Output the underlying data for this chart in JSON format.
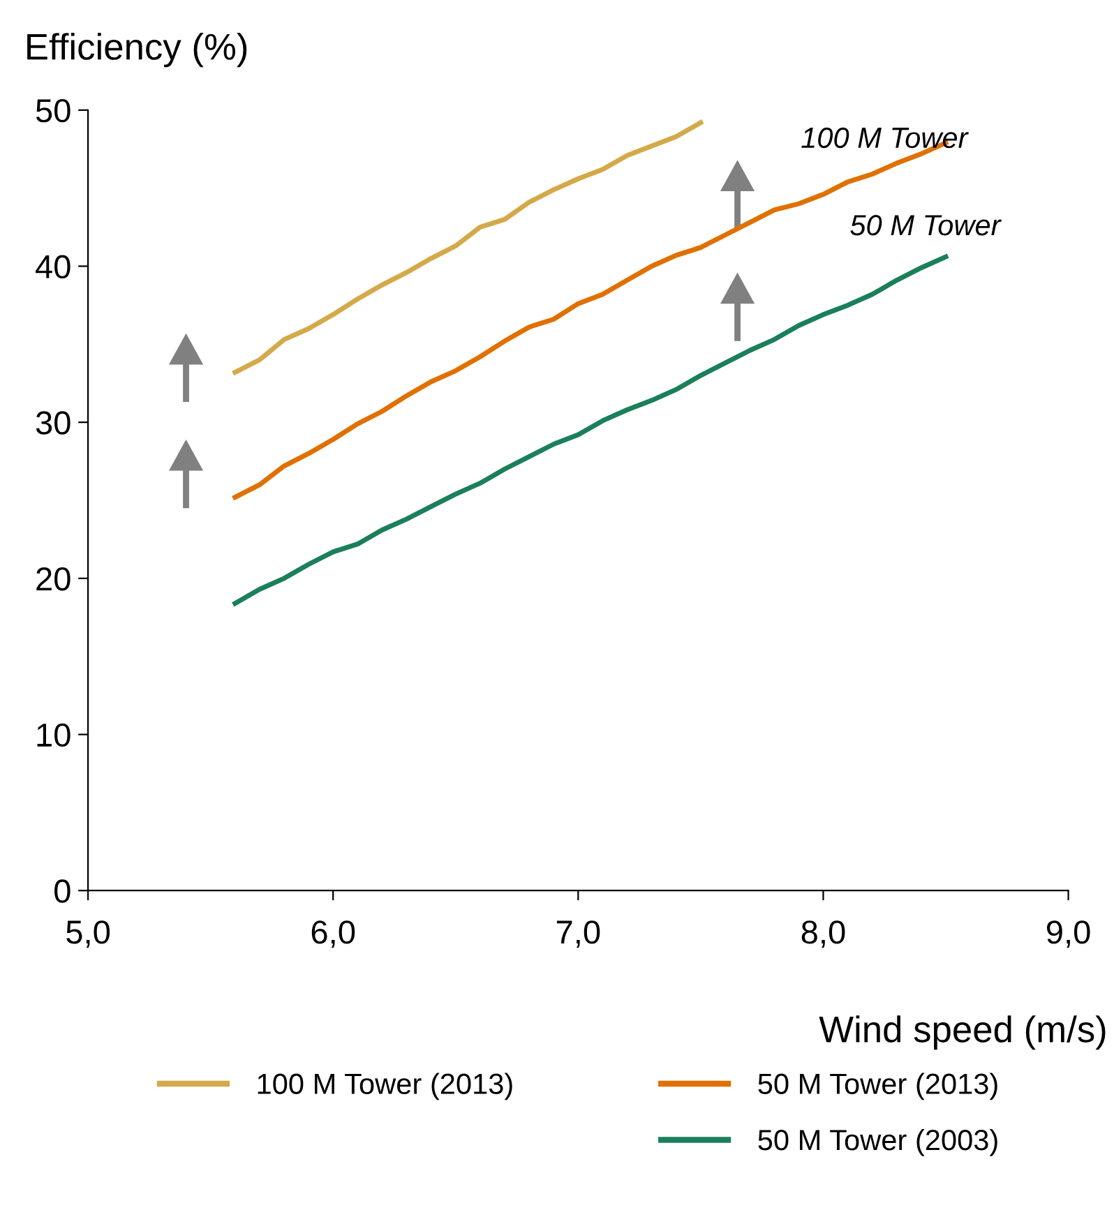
{
  "chart_data": {
    "type": "line",
    "xlabel": "Wind speed (m/s)",
    "ylabel": "Efficiency (%)",
    "xlim": [
      5,
      9
    ],
    "xticks": [
      {
        "value": 5,
        "label": "5,0"
      },
      {
        "value": 6,
        "label": "6,0"
      },
      {
        "value": 7,
        "label": "7,0"
      },
      {
        "value": 8,
        "label": "8,0"
      },
      {
        "value": 9,
        "label": "9,0"
      }
    ],
    "ylim": [
      0,
      50
    ],
    "yticks": [
      0,
      10,
      20,
      30,
      40,
      50
    ],
    "grid": false,
    "legend": "bottom",
    "marker": "none",
    "line_style": "solid",
    "series": [
      {
        "name": "100 M Tower (2013)",
        "color": "#d4a94a",
        "x": [
          5.6,
          5.7,
          5.8,
          5.9,
          6.0,
          6.1,
          6.2,
          6.3,
          6.4,
          6.5,
          6.6,
          6.7,
          6.8,
          6.9,
          7.0,
          7.1,
          7.2,
          7.3,
          7.4,
          7.5
        ],
        "values": [
          33.2,
          34.0,
          35.3,
          36.0,
          36.9,
          37.9,
          38.8,
          39.6,
          40.5,
          41.3,
          42.5,
          43.0,
          44.1,
          44.9,
          45.6,
          46.2,
          47.1,
          47.7,
          48.3,
          49.2
        ]
      },
      {
        "name": "50 M Tower (2013)",
        "color": "#e07000",
        "x": [
          5.6,
          5.7,
          5.8,
          5.9,
          6.0,
          6.1,
          6.2,
          6.3,
          6.4,
          6.5,
          6.6,
          6.7,
          6.8,
          6.9,
          7.0,
          7.1,
          7.2,
          7.3,
          7.4,
          7.5,
          7.6,
          7.7,
          7.8,
          7.9,
          8.0,
          8.1,
          8.2,
          8.3,
          8.4,
          8.5
        ],
        "values": [
          25.2,
          26.0,
          27.2,
          28.0,
          28.9,
          29.9,
          30.7,
          31.7,
          32.6,
          33.3,
          34.2,
          35.2,
          36.1,
          36.6,
          37.6,
          38.2,
          39.1,
          40.0,
          40.7,
          41.2,
          42.0,
          42.8,
          43.6,
          44.0,
          44.6,
          45.4,
          45.9,
          46.6,
          47.2,
          47.9
        ]
      },
      {
        "name": "50 M Tower (2003)",
        "color": "#1a7f5a",
        "x": [
          5.6,
          5.7,
          5.8,
          5.9,
          6.0,
          6.1,
          6.2,
          6.3,
          6.4,
          6.5,
          6.6,
          6.7,
          6.8,
          6.9,
          7.0,
          7.1,
          7.2,
          7.3,
          7.4,
          7.5,
          7.6,
          7.7,
          7.8,
          7.9,
          8.0,
          8.1,
          8.2,
          8.3,
          8.4,
          8.5
        ],
        "values": [
          18.4,
          19.3,
          20.0,
          20.9,
          21.7,
          22.2,
          23.1,
          23.8,
          24.6,
          25.4,
          26.1,
          27.0,
          27.8,
          28.6,
          29.2,
          30.1,
          30.8,
          31.4,
          32.1,
          33.0,
          33.8,
          34.6,
          35.3,
          36.2,
          36.9,
          37.5,
          38.2,
          39.1,
          39.9,
          40.6
        ]
      }
    ],
    "annotations": [
      "100 M Tower",
      "50 M Tower"
    ]
  }
}
